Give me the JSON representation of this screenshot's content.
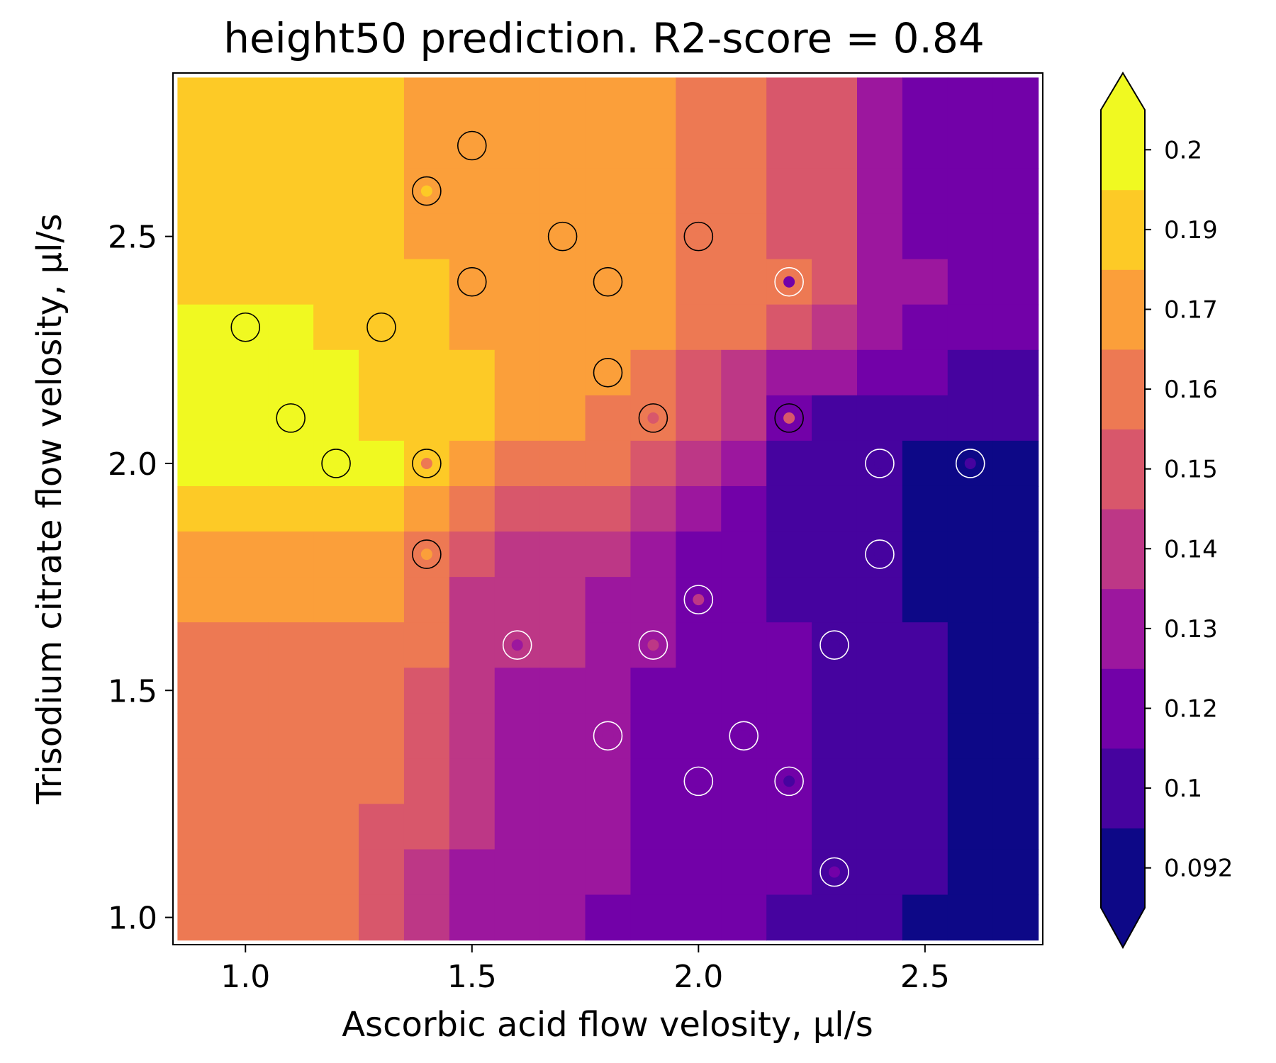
{
  "chart_data": {
    "type": "contour",
    "title": "height50 prediction. R2-score = 0.84",
    "xlabel": "Ascorbic acid flow velosity, µl/s",
    "ylabel": "Trisodium citrate flow velosity, µl/s",
    "xlim": [
      0.84,
      2.76
    ],
    "ylim": [
      0.94,
      2.86
    ],
    "x_ticks": [
      1.0,
      1.5,
      2.0,
      2.5
    ],
    "y_ticks": [
      1.0,
      1.5,
      2.0,
      2.5
    ],
    "x_tick_labels": [
      "1.0",
      "1.5",
      "2.0",
      "2.5"
    ],
    "y_tick_labels": [
      "1.0",
      "1.5",
      "2.0",
      "2.5"
    ],
    "colormap": "plasma",
    "colorbar": {
      "levels": [
        0.092,
        0.1,
        0.12,
        0.13,
        0.14,
        0.15,
        0.16,
        0.17,
        0.19,
        0.2
      ],
      "tick_labels": [
        "0.092",
        "0.1",
        "0.12",
        "0.13",
        "0.14",
        "0.15",
        "0.16",
        "0.17",
        "0.19",
        "0.2"
      ],
      "colors": [
        "#0d0887",
        "#46039f",
        "#7201a8",
        "#9c179e",
        "#bd3786",
        "#d8576b",
        "#ed7953",
        "#fb9f3a",
        "#fdca26",
        "#f0f921"
      ],
      "extend": "both"
    },
    "grid_x": [
      0.9,
      1.0,
      1.1,
      1.2,
      1.3,
      1.4,
      1.5,
      1.6,
      1.7,
      1.8,
      1.9,
      2.0,
      2.1,
      2.2,
      2.3,
      2.4,
      2.5,
      2.6,
      2.7
    ],
    "grid_y": [
      2.8,
      2.7,
      2.6,
      2.5,
      2.4,
      2.3,
      2.2,
      2.1,
      2.0,
      1.9,
      1.8,
      1.7,
      1.6,
      1.5,
      1.4,
      1.3,
      1.2,
      1.1,
      1.0
    ],
    "grid_values": [
      [
        0.19,
        0.19,
        0.19,
        0.19,
        0.19,
        0.17,
        0.17,
        0.17,
        0.17,
        0.17,
        0.17,
        0.16,
        0.16,
        0.15,
        0.15,
        0.13,
        0.12,
        0.12,
        0.12
      ],
      [
        0.19,
        0.19,
        0.19,
        0.19,
        0.19,
        0.17,
        0.17,
        0.17,
        0.17,
        0.17,
        0.17,
        0.16,
        0.16,
        0.15,
        0.15,
        0.13,
        0.12,
        0.12,
        0.12
      ],
      [
        0.19,
        0.19,
        0.19,
        0.19,
        0.19,
        0.17,
        0.17,
        0.17,
        0.17,
        0.17,
        0.17,
        0.16,
        0.16,
        0.15,
        0.15,
        0.13,
        0.12,
        0.12,
        0.12
      ],
      [
        0.19,
        0.19,
        0.19,
        0.19,
        0.19,
        0.17,
        0.17,
        0.17,
        0.17,
        0.17,
        0.17,
        0.16,
        0.16,
        0.15,
        0.15,
        0.13,
        0.12,
        0.12,
        0.12
      ],
      [
        0.19,
        0.19,
        0.19,
        0.19,
        0.19,
        0.19,
        0.17,
        0.17,
        0.17,
        0.17,
        0.17,
        0.16,
        0.16,
        0.16,
        0.15,
        0.13,
        0.13,
        0.12,
        0.12
      ],
      [
        0.2,
        0.2,
        0.2,
        0.19,
        0.19,
        0.19,
        0.17,
        0.17,
        0.17,
        0.17,
        0.17,
        0.16,
        0.16,
        0.15,
        0.14,
        0.13,
        0.12,
        0.12,
        0.12
      ],
      [
        0.2,
        0.2,
        0.2,
        0.2,
        0.19,
        0.19,
        0.19,
        0.17,
        0.17,
        0.17,
        0.16,
        0.15,
        0.14,
        0.13,
        0.13,
        0.12,
        0.12,
        0.1,
        0.1
      ],
      [
        0.2,
        0.2,
        0.2,
        0.2,
        0.19,
        0.19,
        0.19,
        0.17,
        0.17,
        0.16,
        0.16,
        0.15,
        0.14,
        0.12,
        0.1,
        0.1,
        0.1,
        0.1,
        0.1
      ],
      [
        0.2,
        0.2,
        0.2,
        0.2,
        0.2,
        0.19,
        0.17,
        0.16,
        0.16,
        0.16,
        0.15,
        0.14,
        0.13,
        0.1,
        0.1,
        0.1,
        0.092,
        0.092,
        0.092
      ],
      [
        0.19,
        0.19,
        0.19,
        0.19,
        0.19,
        0.17,
        0.16,
        0.15,
        0.15,
        0.15,
        0.14,
        0.13,
        0.12,
        0.1,
        0.1,
        0.1,
        0.092,
        0.092,
        0.092
      ],
      [
        0.17,
        0.17,
        0.17,
        0.17,
        0.17,
        0.16,
        0.15,
        0.14,
        0.14,
        0.14,
        0.13,
        0.12,
        0.12,
        0.1,
        0.1,
        0.1,
        0.092,
        0.092,
        0.092
      ],
      [
        0.17,
        0.17,
        0.17,
        0.17,
        0.17,
        0.16,
        0.14,
        0.14,
        0.14,
        0.13,
        0.13,
        0.12,
        0.12,
        0.1,
        0.1,
        0.1,
        0.092,
        0.092,
        0.092
      ],
      [
        0.16,
        0.16,
        0.16,
        0.16,
        0.16,
        0.16,
        0.14,
        0.14,
        0.14,
        0.13,
        0.13,
        0.12,
        0.12,
        0.12,
        0.1,
        0.1,
        0.1,
        0.092,
        0.092
      ],
      [
        0.16,
        0.16,
        0.16,
        0.16,
        0.16,
        0.15,
        0.14,
        0.13,
        0.13,
        0.13,
        0.12,
        0.12,
        0.12,
        0.12,
        0.1,
        0.1,
        0.1,
        0.092,
        0.092
      ],
      [
        0.16,
        0.16,
        0.16,
        0.16,
        0.16,
        0.15,
        0.14,
        0.13,
        0.13,
        0.13,
        0.12,
        0.12,
        0.12,
        0.12,
        0.1,
        0.1,
        0.1,
        0.092,
        0.092
      ],
      [
        0.16,
        0.16,
        0.16,
        0.16,
        0.16,
        0.15,
        0.14,
        0.13,
        0.13,
        0.13,
        0.12,
        0.12,
        0.12,
        0.12,
        0.1,
        0.1,
        0.1,
        0.092,
        0.092
      ],
      [
        0.16,
        0.16,
        0.16,
        0.16,
        0.15,
        0.15,
        0.14,
        0.13,
        0.13,
        0.13,
        0.12,
        0.12,
        0.12,
        0.12,
        0.1,
        0.1,
        0.1,
        0.092,
        0.092
      ],
      [
        0.16,
        0.16,
        0.16,
        0.16,
        0.15,
        0.14,
        0.13,
        0.13,
        0.13,
        0.13,
        0.12,
        0.12,
        0.12,
        0.12,
        0.1,
        0.1,
        0.1,
        0.092,
        0.092
      ],
      [
        0.16,
        0.16,
        0.16,
        0.16,
        0.15,
        0.14,
        0.13,
        0.13,
        0.13,
        0.12,
        0.12,
        0.12,
        0.12,
        0.1,
        0.1,
        0.1,
        0.092,
        0.092,
        0.092
      ]
    ],
    "points": [
      {
        "x": 1.5,
        "y": 2.7,
        "value": 0.17
      },
      {
        "x": 1.4,
        "y": 2.6,
        "value": 0.19
      },
      {
        "x": 1.7,
        "y": 2.5,
        "value": 0.17
      },
      {
        "x": 2.0,
        "y": 2.5,
        "value": 0.16
      },
      {
        "x": 1.5,
        "y": 2.4,
        "value": 0.17
      },
      {
        "x": 1.8,
        "y": 2.4,
        "value": 0.17
      },
      {
        "x": 2.2,
        "y": 2.4,
        "value": 0.12
      },
      {
        "x": 1.0,
        "y": 2.3,
        "value": 0.2
      },
      {
        "x": 1.3,
        "y": 2.3,
        "value": 0.19
      },
      {
        "x": 1.8,
        "y": 2.2,
        "value": 0.17
      },
      {
        "x": 1.1,
        "y": 2.1,
        "value": 0.2
      },
      {
        "x": 1.9,
        "y": 2.1,
        "value": 0.15
      },
      {
        "x": 2.2,
        "y": 2.1,
        "value": 0.15
      },
      {
        "x": 1.2,
        "y": 2.0,
        "value": 0.2
      },
      {
        "x": 1.4,
        "y": 2.0,
        "value": 0.16
      },
      {
        "x": 2.4,
        "y": 2.0,
        "value": 0.1
      },
      {
        "x": 2.6,
        "y": 2.0,
        "value": 0.1
      },
      {
        "x": 1.4,
        "y": 1.8,
        "value": 0.17
      },
      {
        "x": 2.4,
        "y": 1.8,
        "value": 0.1
      },
      {
        "x": 2.0,
        "y": 1.7,
        "value": 0.14
      },
      {
        "x": 1.6,
        "y": 1.6,
        "value": 0.13
      },
      {
        "x": 1.9,
        "y": 1.6,
        "value": 0.14
      },
      {
        "x": 2.3,
        "y": 1.6,
        "value": 0.1
      },
      {
        "x": 1.8,
        "y": 1.4,
        "value": 0.13
      },
      {
        "x": 2.1,
        "y": 1.4,
        "value": 0.12
      },
      {
        "x": 2.0,
        "y": 1.3,
        "value": 0.12
      },
      {
        "x": 2.2,
        "y": 1.3,
        "value": 0.1
      },
      {
        "x": 2.3,
        "y": 1.1,
        "value": 0.12
      }
    ]
  }
}
